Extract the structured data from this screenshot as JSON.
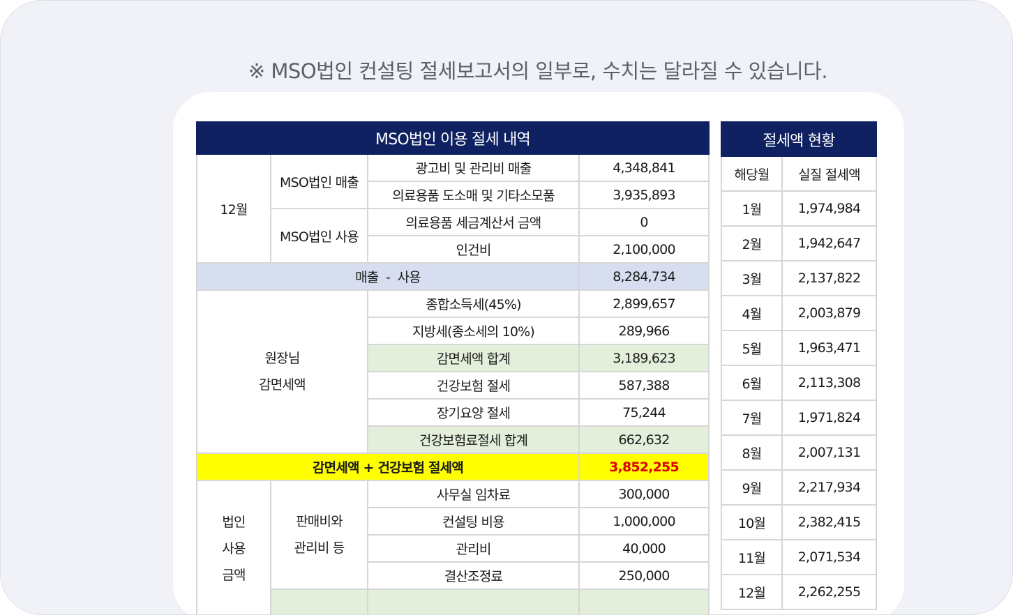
{
  "notice": "※ MSO법인 컨설팅 절세보고서의 일부로, 수치는 달라질 수 있습니다.",
  "main": {
    "title": "MSO법인 이용 절세 내역",
    "month": "12월",
    "rev_label": "MSO법인 매출",
    "use_label": "MSO법인 사용",
    "rows": [
      {
        "label": "광고비 및 관리비 매출",
        "value": "4,348,841"
      },
      {
        "label": "의료용품 도소매 및 기타소모품",
        "value": "3,935,893"
      },
      {
        "label": "의료용품 세금계산서 금액",
        "value": "0"
      },
      {
        "label": "인건비",
        "value": "2,100,000"
      }
    ],
    "diff_label": "매출  -  사용",
    "diff_value": "8,284,734",
    "director_label_1": "원장님",
    "director_label_2": "감면세액",
    "tax_rows": [
      {
        "label": "종합소득세(45%)",
        "value": "2,899,657"
      },
      {
        "label": "지방세(종소세의 10%)",
        "value": "289,966"
      },
      {
        "label": "감면세액 합계",
        "value": "3,189,623"
      },
      {
        "label": "건강보험 절세",
        "value": "587,388"
      },
      {
        "label": "장기요양 절세",
        "value": "75,244"
      },
      {
        "label": "건강보험료절세 합계",
        "value": "662,632"
      }
    ],
    "total_label": "감면세액 + 건강보험 절세액",
    "total_value": "3,852,255",
    "corp_label": [
      "법인",
      "사용",
      "금액"
    ],
    "sga_label": [
      "판매비와",
      "관리비 등"
    ],
    "corp_rows": [
      {
        "label": "사무실 임차료",
        "value": "300,000"
      },
      {
        "label": "컨설팅 비용",
        "value": "1,000,000"
      },
      {
        "label": "관리비",
        "value": "40,000"
      },
      {
        "label": "결산조정료",
        "value": "250,000"
      }
    ]
  },
  "side": {
    "title": "절세액 현황",
    "col_month": "해당월",
    "col_amount": "실질 절세액",
    "rows": [
      {
        "month": "1월",
        "amount": "1,974,984"
      },
      {
        "month": "2월",
        "amount": "1,942,647"
      },
      {
        "month": "3월",
        "amount": "2,137,822"
      },
      {
        "month": "4월",
        "amount": "2,003,879"
      },
      {
        "month": "5월",
        "amount": "1,963,471"
      },
      {
        "month": "6월",
        "amount": "2,113,308"
      },
      {
        "month": "7월",
        "amount": "1,971,824"
      },
      {
        "month": "8월",
        "amount": "2,007,131"
      },
      {
        "month": "9월",
        "amount": "2,217,934"
      },
      {
        "month": "10월",
        "amount": "2,382,415"
      },
      {
        "month": "11월",
        "amount": "2,071,534"
      },
      {
        "month": "12월",
        "amount": "2,262,255"
      }
    ]
  }
}
